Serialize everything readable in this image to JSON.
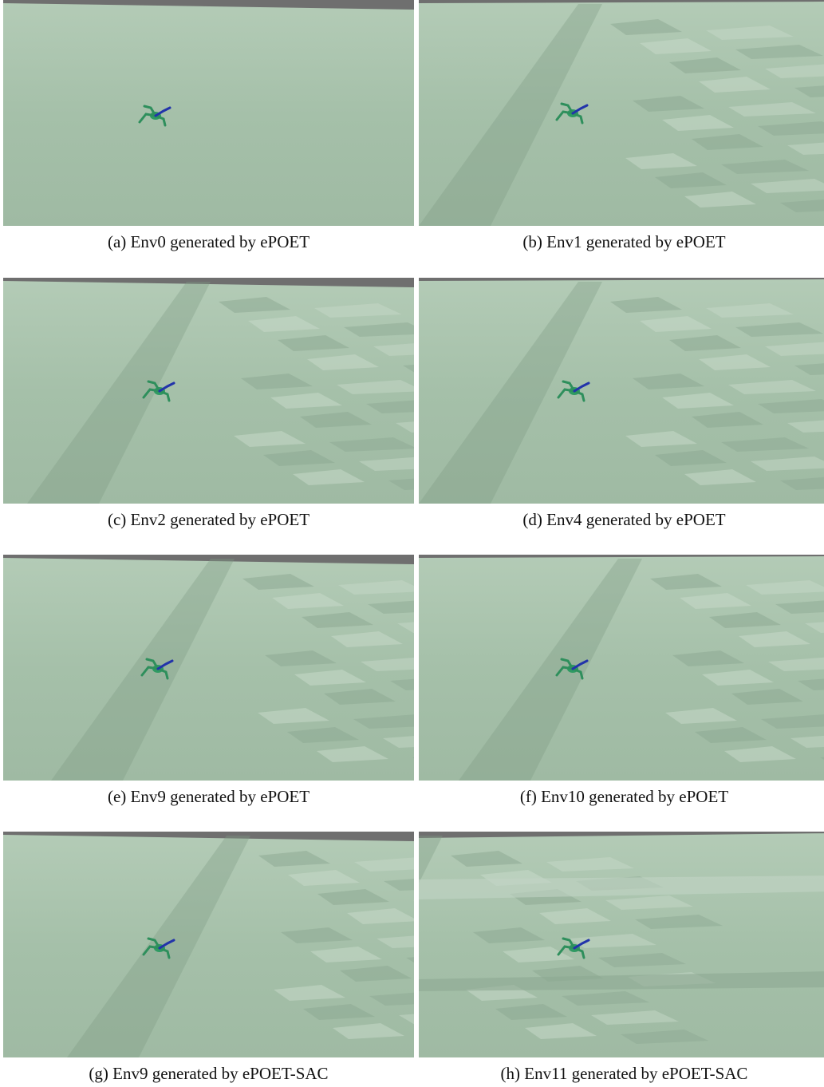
{
  "figure": {
    "panels": [
      {
        "caption": "(a) Env0 generated by ePOET"
      },
      {
        "caption": "(b) Env1 generated by ePOET"
      },
      {
        "caption": "(c) Env2 generated by ePOET"
      },
      {
        "caption": "(d) Env4 generated by ePOET"
      },
      {
        "caption": "(e) Env9 generated by ePOET"
      },
      {
        "caption": "(f) Env10 generated by ePOET"
      },
      {
        "caption": "(g) Env9 generated by ePOET-SAC"
      },
      {
        "caption": "(h) Env11 generated by ePOET-SAC"
      }
    ]
  }
}
